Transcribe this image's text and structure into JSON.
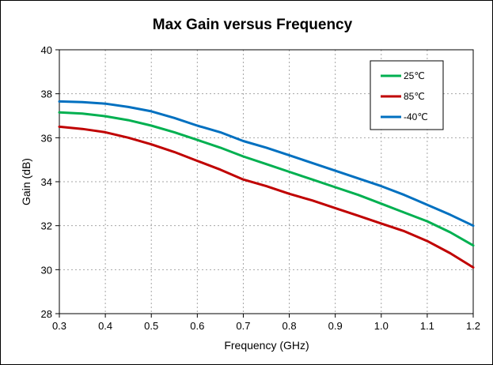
{
  "chart_data": {
    "type": "line",
    "title": "Max Gain versus Frequency",
    "xlabel": "Frequency (GHz)",
    "ylabel": "Gain (dB)",
    "xlim": [
      0.3,
      1.2
    ],
    "ylim": [
      28,
      40
    ],
    "xticks": [
      0.3,
      0.4,
      0.5,
      0.6,
      0.7,
      0.8,
      0.9,
      1.0,
      1.1,
      1.2
    ],
    "xtick_labels": [
      "0.3",
      "0.4",
      "0.5",
      "0.6",
      "0.7",
      "0.8",
      "0.9",
      "1.0",
      "1.1",
      "1.2"
    ],
    "yticks": [
      28,
      30,
      32,
      34,
      36,
      38,
      40
    ],
    "ytick_labels": [
      "28",
      "30",
      "32",
      "34",
      "36",
      "38",
      "40"
    ],
    "grid": true,
    "legend_position": "top-right",
    "series": [
      {
        "name": "25℃",
        "color": "#00b050",
        "x": [
          0.3,
          0.35,
          0.4,
          0.45,
          0.5,
          0.55,
          0.6,
          0.65,
          0.7,
          0.75,
          0.8,
          0.85,
          0.9,
          0.95,
          1.0,
          1.05,
          1.1,
          1.15,
          1.2
        ],
        "y": [
          37.15,
          37.1,
          36.98,
          36.8,
          36.55,
          36.25,
          35.9,
          35.55,
          35.15,
          34.8,
          34.45,
          34.1,
          33.75,
          33.4,
          33.0,
          32.6,
          32.2,
          31.7,
          31.1
        ]
      },
      {
        "name": "85℃",
        "color": "#c00000",
        "x": [
          0.3,
          0.35,
          0.4,
          0.45,
          0.5,
          0.55,
          0.6,
          0.65,
          0.7,
          0.75,
          0.8,
          0.85,
          0.9,
          0.95,
          1.0,
          1.05,
          1.1,
          1.15,
          1.2
        ],
        "y": [
          36.5,
          36.4,
          36.25,
          36.0,
          35.7,
          35.35,
          34.95,
          34.55,
          34.1,
          33.8,
          33.45,
          33.15,
          32.8,
          32.45,
          32.1,
          31.75,
          31.3,
          30.75,
          30.1
        ]
      },
      {
        "name": "-40℃",
        "color": "#0070c0",
        "x": [
          0.3,
          0.35,
          0.4,
          0.45,
          0.5,
          0.55,
          0.6,
          0.65,
          0.7,
          0.75,
          0.8,
          0.85,
          0.9,
          0.95,
          1.0,
          1.05,
          1.1,
          1.15,
          1.2
        ],
        "y": [
          37.65,
          37.62,
          37.55,
          37.4,
          37.2,
          36.9,
          36.55,
          36.25,
          35.85,
          35.55,
          35.2,
          34.85,
          34.5,
          34.15,
          33.8,
          33.4,
          32.95,
          32.5,
          32.0
        ]
      }
    ]
  }
}
